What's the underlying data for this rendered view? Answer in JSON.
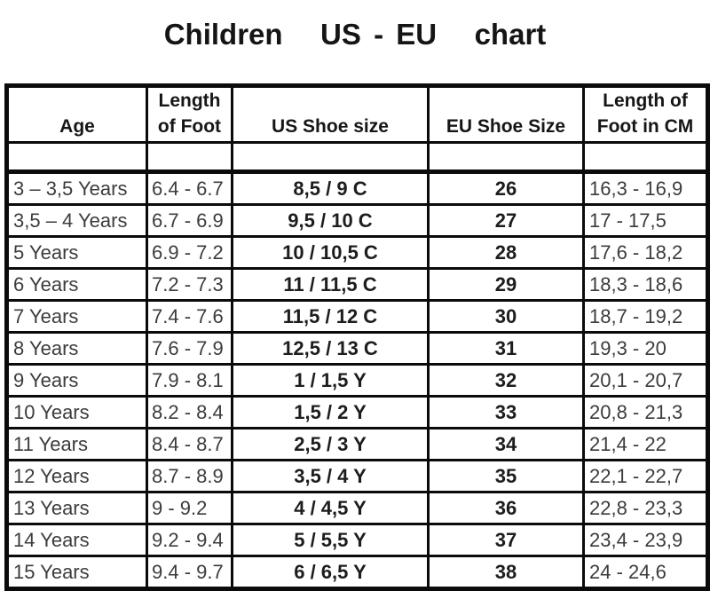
{
  "title": "Children   US - EU   chart",
  "colors": {
    "border": "#0b0b0b",
    "title_text": "#151515",
    "header_text": "#161616",
    "bold_cell_text": "#1d1d1d",
    "regular_cell_text": "#3c3c3c",
    "background": "#ffffff"
  },
  "chart_data": {
    "type": "table",
    "title": "Children US - EU chart",
    "columns": [
      "Age",
      "Length of Foot",
      "US Shoe size",
      "EU Shoe Size",
      "Length of Foot in CM"
    ],
    "rows": [
      [
        "3 – 3,5 Years",
        "6.4 - 6.7",
        "8,5 / 9 C",
        "26",
        "16,3 - 16,9"
      ],
      [
        "3,5 – 4 Years",
        "6.7 - 6.9",
        "9,5 / 10 C",
        "27",
        "17 - 17,5"
      ],
      [
        "5 Years",
        "6.9 - 7.2",
        "10 / 10,5 C",
        "28",
        "17,6 - 18,2"
      ],
      [
        "6 Years",
        "7.2 - 7.3",
        "11 / 11,5 C",
        "29",
        "18,3 - 18,6"
      ],
      [
        "7 Years",
        "7.4 - 7.6",
        "11,5 / 12 C",
        "30",
        "18,7 - 19,2"
      ],
      [
        "8 Years",
        "7.6 - 7.9",
        "12,5 / 13 C",
        "31",
        "19,3 - 20"
      ],
      [
        "9 Years",
        "7.9 - 8.1",
        "1 / 1,5 Y",
        "32",
        "20,1 - 20,7"
      ],
      [
        "10 Years",
        "8.2 - 8.4",
        "1,5 / 2 Y",
        "33",
        "20,8 - 21,3"
      ],
      [
        "11 Years",
        "8.4 - 8.7",
        "2,5 / 3 Y",
        "34",
        "21,4 - 22"
      ],
      [
        "12 Years",
        "8.7 - 8.9",
        "3,5 / 4 Y",
        "35",
        "22,1 - 22,7"
      ],
      [
        "13 Years",
        "9 - 9.2",
        "4 / 4,5 Y",
        "36",
        "22,8 - 23,3"
      ],
      [
        "14 Years",
        "9.2 - 9.4",
        "5 / 5,5 Y",
        "37",
        "23,4 - 23,9"
      ],
      [
        "15 Years",
        "9.4 - 9.7",
        "6 / 6,5 Y",
        "38",
        "24 - 24,6"
      ]
    ]
  }
}
